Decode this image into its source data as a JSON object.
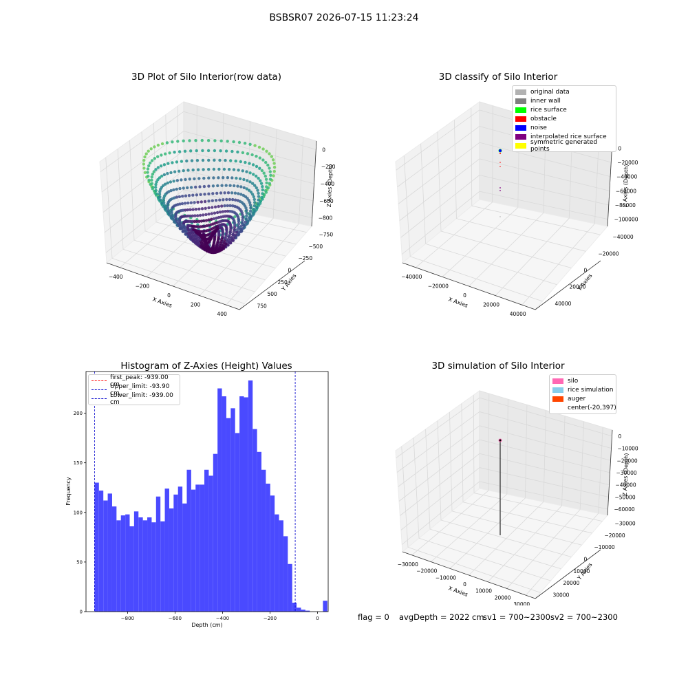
{
  "figure": {
    "suptitle": "BSBSR07 2026-07-15 11:23:24"
  },
  "status": {
    "flag": "flag = 0",
    "avg_depth": "avgDepth = 2022 cm",
    "sv1": "sv1 = 700~2300",
    "sv2": "sv2 = 700~2300"
  },
  "colors": {
    "histogram_bar": "#4a4aff",
    "first_peak_line": "#ff0000",
    "limit_line": "#0000cc",
    "original_data": "#b2b2b2",
    "inner_wall": "#808080",
    "rice_surface": "#00ff00",
    "obstacle": "#ff0000",
    "noise": "#0000ff",
    "interpolated_rice_surface": "#800080",
    "symmetric_generated_points": "#ffff00",
    "silo": "#ff69b4",
    "rice_simulation": "#87ceeb",
    "auger": "#ff4500"
  },
  "chart_data": [
    {
      "id": "raw",
      "type": "scatter",
      "title": "3D Plot of Silo Interior(row data)",
      "xlabel": "X Axies",
      "ylabel": "Y Axies",
      "zlabel": "Z Axies (Depth)",
      "x_ticks": [
        "−400",
        "−200",
        "0",
        "200",
        "400"
      ],
      "y_ticks": [
        "−750",
        "−500",
        "−250",
        "0",
        "250",
        "500",
        "750"
      ],
      "z_ticks": [
        "−800",
        "−600",
        "−400",
        "−200",
        "0"
      ],
      "xlim": [
        -500,
        500
      ],
      "ylim": [
        -850,
        850
      ],
      "zlim": [
        -940,
        0
      ],
      "colormap": "viridis"
    },
    {
      "id": "classify",
      "type": "scatter",
      "title": "3D classify of Silo Interior",
      "xlabel": "X Axies",
      "ylabel": "Y Axies",
      "zlabel": "Z Axies (Depth)",
      "x_ticks": [
        "−40000",
        "−20000",
        "0",
        "20000",
        "40000"
      ],
      "y_ticks": [
        "−40000",
        "−20000",
        "0",
        "20000",
        "40000"
      ],
      "z_ticks": [
        "−100000",
        "−80000",
        "−60000",
        "−40000",
        "−20000",
        "0"
      ],
      "legend": [
        "original data",
        "inner wall",
        "rice surface",
        "obstacle",
        "noise",
        "interpolated rice surface",
        "symmetric generated points"
      ],
      "legend_position": "top-right"
    },
    {
      "id": "histogram",
      "type": "bar",
      "title": "Histogram of Z-Axies (Height) Values",
      "xlabel": "Depth (cm)",
      "ylabel": "Frequency",
      "xlim": [
        -975,
        45
      ],
      "ylim": [
        0,
        242
      ],
      "x_ticks": [
        "−800",
        "−600",
        "−400",
        "−200",
        "0"
      ],
      "x_tick_values": [
        -800,
        -600,
        -400,
        -200,
        0
      ],
      "y_ticks": [
        "0",
        "50",
        "100",
        "150",
        "200"
      ],
      "y_tick_values": [
        0,
        50,
        100,
        150,
        200
      ],
      "bin_start": -939,
      "bin_width": 18.5,
      "values": [
        130,
        122,
        112,
        119,
        106,
        92,
        97,
        98,
        86,
        101,
        95,
        92,
        95,
        90,
        116,
        91,
        124,
        104,
        118,
        126,
        109,
        143,
        123,
        128,
        128,
        143,
        137,
        159,
        225,
        217,
        195,
        205,
        180,
        217,
        216,
        233,
        184,
        161,
        143,
        129,
        117,
        98,
        92,
        76,
        48,
        9,
        4,
        2,
        1,
        0,
        0,
        0,
        11
      ],
      "legend": [
        "first_peak: -939.00 cm",
        "Upper_limit: -93.90 cm",
        "Lower_limit: -939.00 cm"
      ],
      "legend_position": "top-left",
      "vlines": [
        -939,
        -93.9
      ],
      "grid": false
    },
    {
      "id": "simulation",
      "type": "scatter",
      "title": "3D simulation of Silo Interior",
      "xlabel": "X Axies",
      "ylabel": "Y Axies",
      "zlabel": "Z Axies (Depth)",
      "x_ticks": [
        "−30000",
        "−20000",
        "−10000",
        "0",
        "10000",
        "20000",
        "30000"
      ],
      "y_ticks": [
        "−30000",
        "−20000",
        "−10000",
        "0",
        "10000",
        "20000",
        "30000"
      ],
      "z_ticks": [
        "−60000",
        "−50000",
        "−40000",
        "−30000",
        "−20000",
        "−10000",
        "0"
      ],
      "legend": [
        "silo",
        "rice simulation",
        "auger",
        "center(-20,397)"
      ],
      "legend_position": "top-right"
    }
  ]
}
